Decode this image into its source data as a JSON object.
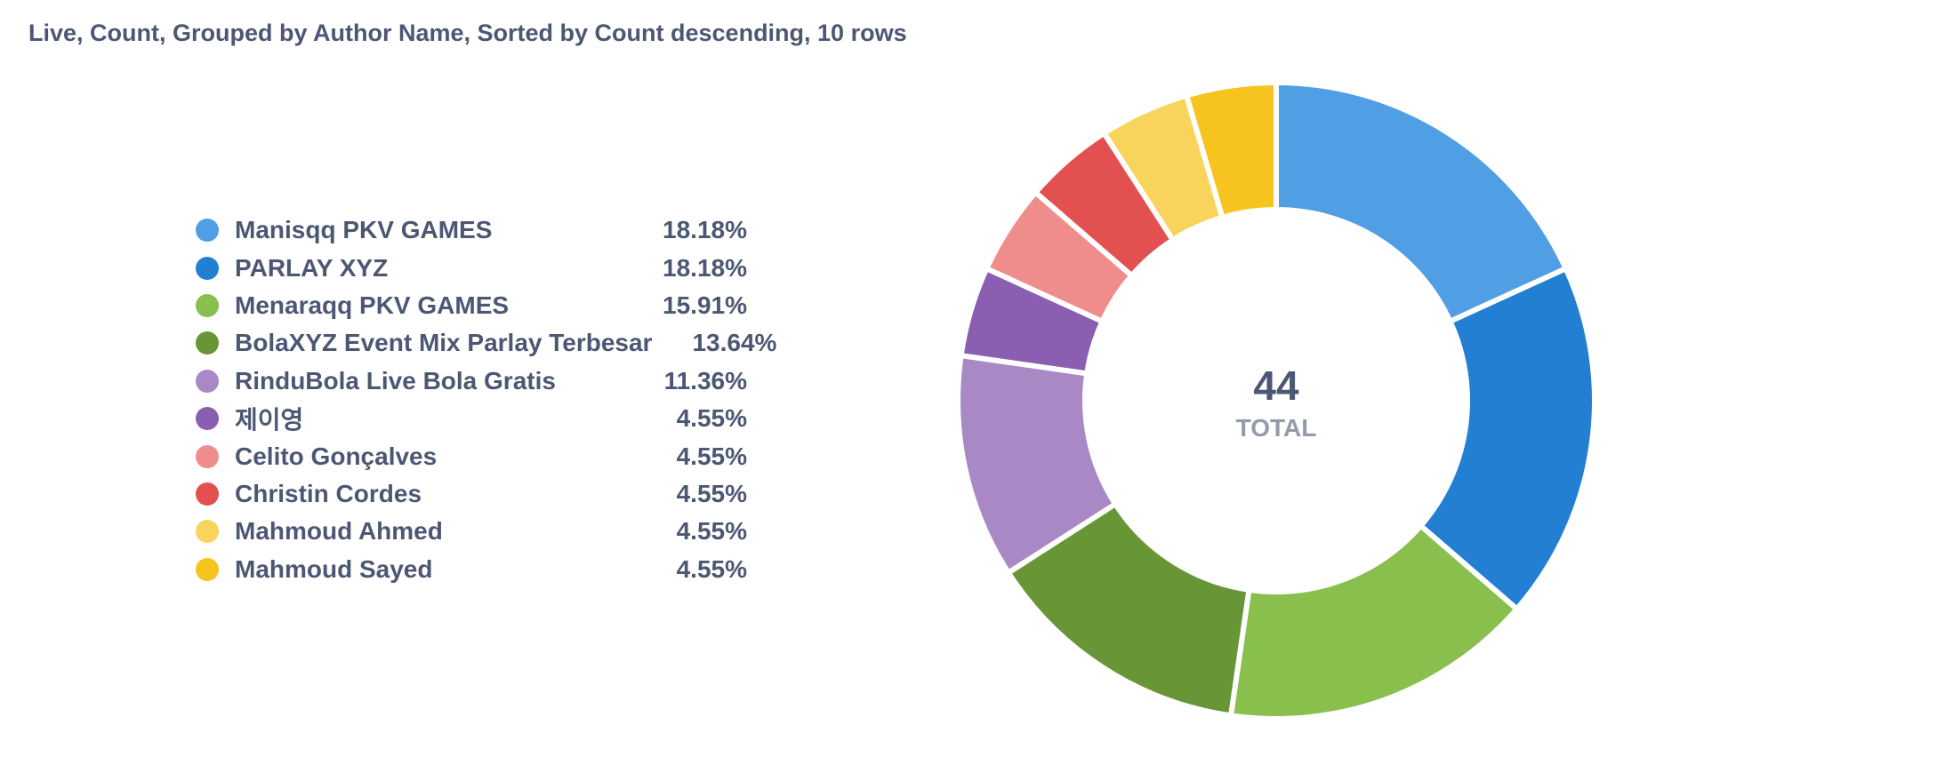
{
  "title": "Live, Count, Grouped by Author Name, Sorted by Count descending, 10 rows",
  "center": {
    "value": "44",
    "label": "TOTAL"
  },
  "chart_data": {
    "type": "pie",
    "donut": true,
    "total": 44,
    "legend_position": "left",
    "slices": [
      {
        "name": "Manisqq PKV GAMES",
        "value": 8,
        "percent": "18.18%",
        "color": "#509ee3"
      },
      {
        "name": "PARLAY XYZ",
        "value": 8,
        "percent": "18.18%",
        "color": "#227fd2"
      },
      {
        "name": "Menaraqq PKV GAMES",
        "value": 7,
        "percent": "15.91%",
        "color": "#88bf4d"
      },
      {
        "name": "BolaXYZ Event Mix Parlay Terbesar",
        "value": 6,
        "percent": "13.64%",
        "color": "#689636"
      },
      {
        "name": "RinduBola Live Bola Gratis",
        "value": 5,
        "percent": "11.36%",
        "color": "#a989c5"
      },
      {
        "name": "제이영",
        "value": 2,
        "percent": "4.55%",
        "color": "#8a5eb0"
      },
      {
        "name": "Celito Gonçalves",
        "value": 2,
        "percent": "4.55%",
        "color": "#ef8c8c"
      },
      {
        "name": "Christin Cordes",
        "value": 2,
        "percent": "4.55%",
        "color": "#e35050"
      },
      {
        "name": "Mahmoud Ahmed",
        "value": 2,
        "percent": "4.55%",
        "color": "#f9d45c"
      },
      {
        "name": "Mahmoud Sayed",
        "value": 2,
        "percent": "4.55%",
        "color": "#f7c41f"
      }
    ]
  }
}
